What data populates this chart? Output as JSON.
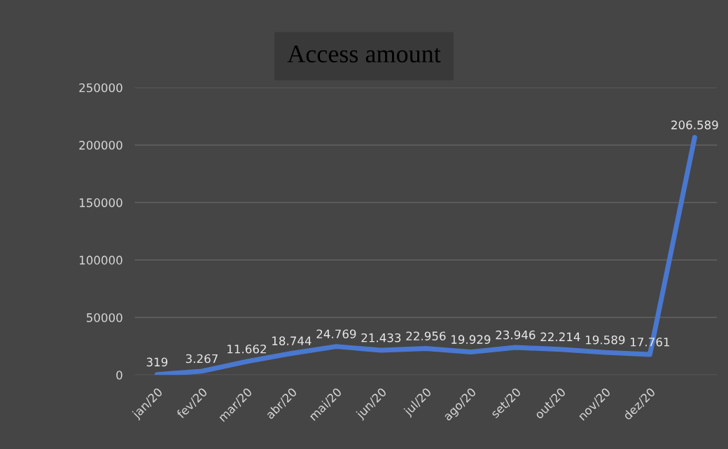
{
  "chart_data": {
    "type": "line",
    "title": "Access amount",
    "categories": [
      "jan/20",
      "fev/20",
      "mar/20",
      "abr/20",
      "mai/20",
      "jun/20",
      "jul/20",
      "ago/20",
      "set/20",
      "out/20",
      "nov/20",
      "dez/20",
      null
    ],
    "series": [
      {
        "color": "#4a78d0",
        "values": [
          319,
          3267,
          11662,
          18744,
          24769,
          21433,
          22956,
          19929,
          23946,
          22214,
          19589,
          17761,
          206589
        ],
        "value_labels": [
          "319",
          "3.267",
          "11.662",
          "18.744",
          "24.769",
          "21.433",
          "22.956",
          "19.929",
          "23.946",
          "22.214",
          "19.589",
          "17.761",
          "206.589"
        ]
      }
    ],
    "ylim": [
      0,
      250000
    ],
    "yticks": [
      0,
      50000,
      100000,
      150000,
      200000,
      250000
    ],
    "grid": "y",
    "marker": "none",
    "line_style": "solid"
  }
}
